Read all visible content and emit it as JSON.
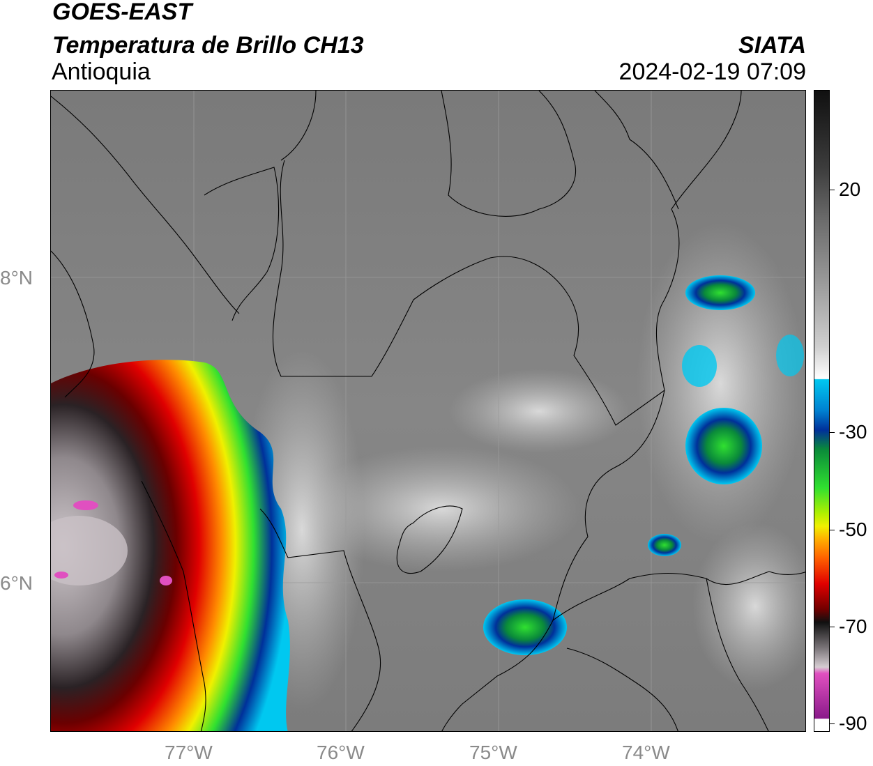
{
  "header": {
    "satellite": "GOES-EAST",
    "product": "Temperatura de Brillo CH13",
    "region": "Antioquia",
    "organization": "SIATA",
    "timestamp": "2024-02-19 07:09"
  },
  "map": {
    "lat_labels": [
      "8°N",
      "6°N"
    ],
    "lon_labels": [
      "77°W",
      "76°W",
      "75°W",
      "74°W"
    ]
  },
  "colorbar": {
    "tick_labels": [
      "20",
      "-30",
      "-50",
      "-70",
      "-90"
    ],
    "colors": {
      "cloudtop_cyan": "#00c8f0",
      "deep_blue": "#00309a",
      "green": "#30e030",
      "yellow": "#f0f000",
      "orange": "#ff8c00",
      "red": "#e00000",
      "dark_red": "#700000",
      "black": "#101010",
      "magenta": "#e050c0"
    }
  }
}
